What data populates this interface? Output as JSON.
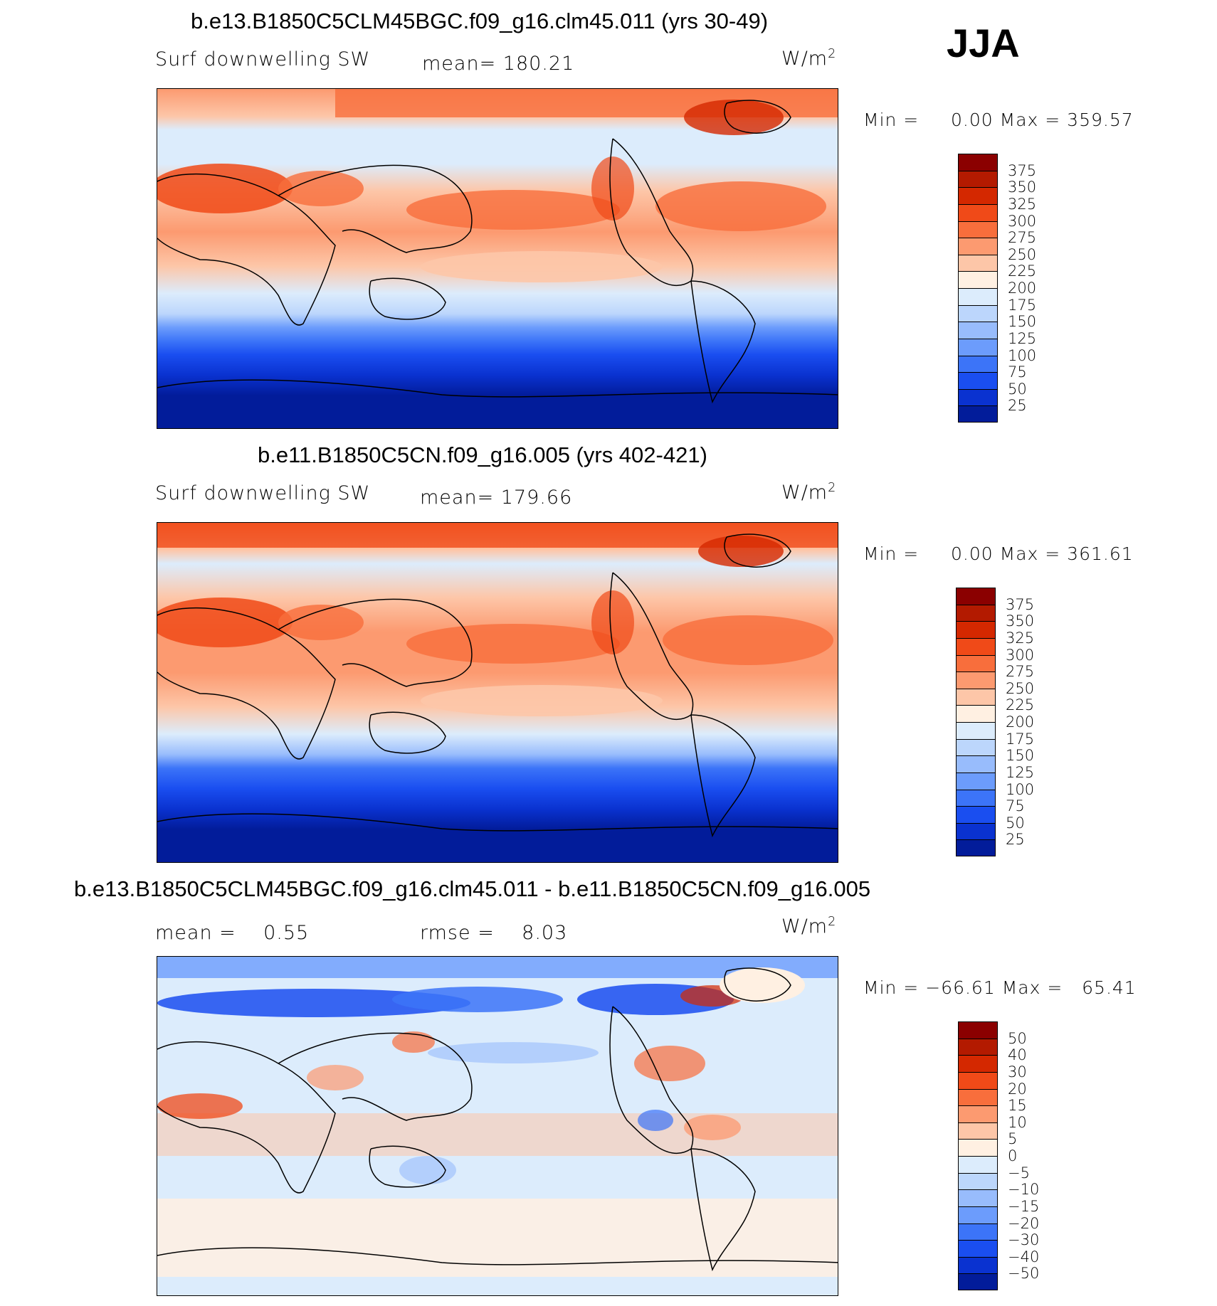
{
  "season": "JJA",
  "panels": [
    {
      "title": "b.e13.B1850C5CLM45BGC.f09_g16.clm45.011 (yrs 30-49)",
      "variable": "Surf downwelling SW",
      "stat1": "mean= 180.21",
      "stat2": "",
      "units": "W/m",
      "units_exp": "2",
      "min_label": "Min =",
      "min_value": "0.00",
      "max_label": "Max =",
      "max_value": "359.57"
    },
    {
      "title": "b.e11.B1850C5CN.f09_g16.005 (yrs 402-421)",
      "variable": "Surf downwelling SW",
      "stat1": "mean= 179.66",
      "stat2": "",
      "units": "W/m",
      "units_exp": "2",
      "min_label": "Min =",
      "min_value": "0.00",
      "max_label": "Max =",
      "max_value": "361.61"
    },
    {
      "title": "b.e13.B1850C5CLM45BGC.f09_g16.clm45.011 - b.e11.B1850C5CN.f09_g16.005",
      "variable": "",
      "stat1": "mean =    0.55",
      "stat2": "rmse =    8.03",
      "units": "W/m",
      "units_exp": "2",
      "min_label": "Min =",
      "min_value": "−66.61",
      "max_label": "Max =",
      "max_value": "65.41"
    }
  ],
  "colorbars": {
    "abs": {
      "ticks": [
        "375",
        "350",
        "325",
        "300",
        "275",
        "250",
        "225",
        "200",
        "175",
        "150",
        "125",
        "100",
        "75",
        "50",
        "25"
      ],
      "colors": [
        "#8b0000",
        "#b31a00",
        "#d42800",
        "#f04a18",
        "#f86e3c",
        "#fc9a70",
        "#fdc6a8",
        "#fff0e2",
        "#dcecfc",
        "#bcd6fc",
        "#98bcfc",
        "#6c9cfc",
        "#3c74f8",
        "#1a4ef0",
        "#0a32d0",
        "#021c9a"
      ]
    },
    "diff": {
      "ticks": [
        "50",
        "40",
        "30",
        "20",
        "15",
        "10",
        "5",
        "0",
        "−5",
        "−10",
        "−15",
        "−20",
        "−30",
        "−40",
        "−50"
      ],
      "colors": [
        "#8b0000",
        "#b31a00",
        "#d42800",
        "#f04a18",
        "#f86e3c",
        "#fc9a70",
        "#fdc6a8",
        "#fff0e2",
        "#dcecfc",
        "#bcd6fc",
        "#98bcfc",
        "#6c9cfc",
        "#3c74f8",
        "#1a4ef0",
        "#0a32d0",
        "#021c9a"
      ]
    }
  }
}
